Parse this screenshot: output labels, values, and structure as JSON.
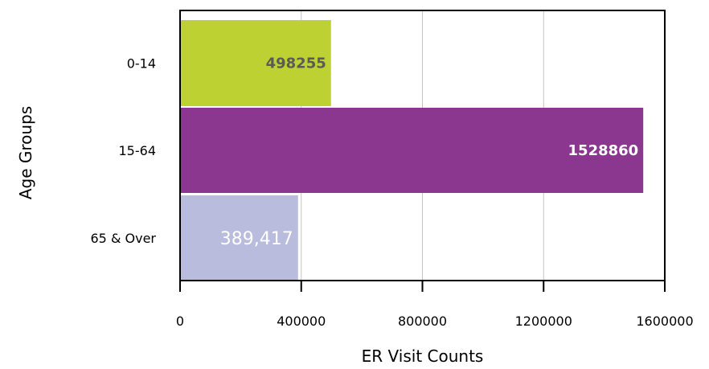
{
  "chart_data": {
    "type": "bar",
    "orientation": "horizontal",
    "categories": [
      "0-14",
      "15-64",
      "65 & Over"
    ],
    "values": [
      498255,
      1528860,
      389417
    ],
    "data_labels": [
      "498255",
      "1528860",
      "389,417"
    ],
    "colors": [
      "#bdd232",
      "#8b368f",
      "#b9bcdd"
    ],
    "label_colors": [
      "#5a5a5a",
      "#ffffff",
      "#ffffff"
    ],
    "xlabel": "ER Visit Counts",
    "ylabel": "Age Groups",
    "xlim": [
      0,
      1600000
    ],
    "x_ticks": [
      0,
      400000,
      800000,
      1200000,
      1600000
    ],
    "x_tick_labels": [
      "0",
      "400000",
      "800000",
      "1200000",
      "1600000"
    ],
    "grid": "vertical",
    "legend": "none"
  }
}
